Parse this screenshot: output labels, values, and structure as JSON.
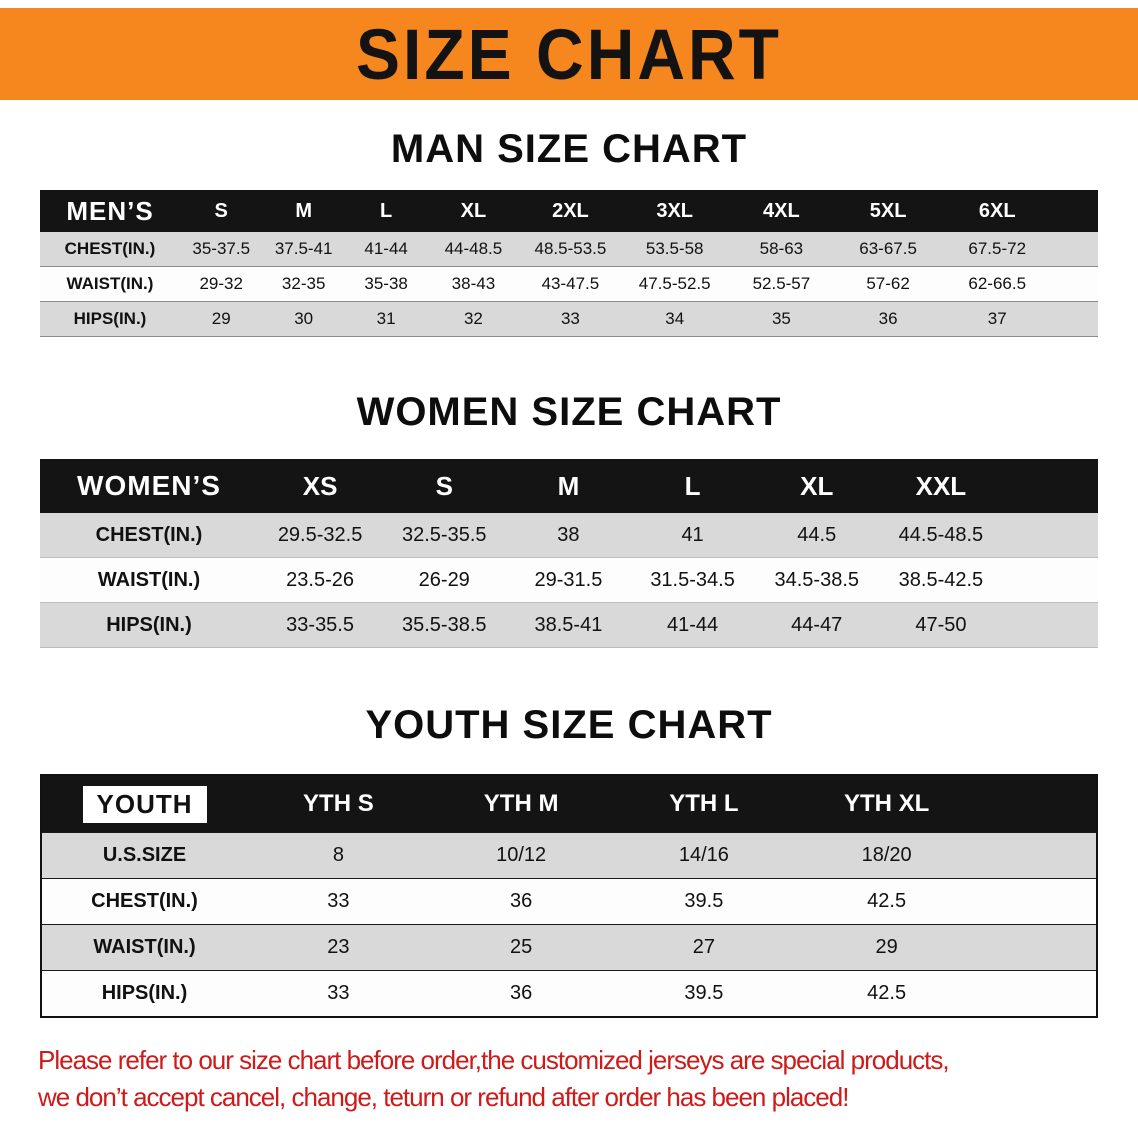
{
  "banner": {
    "title": "SIZE CHART"
  },
  "colors": {
    "banner_bg": "#f6871e",
    "table_header_bg": "#141414",
    "row_shade": "#d9d9d9",
    "disclaimer_red": "#cf1a1a"
  },
  "sections": [
    {
      "id": "men",
      "heading": "MAN SIZE CHART",
      "header": [
        "MEN’S",
        "S",
        "M",
        "L",
        "XL",
        "2XL",
        "3XL",
        "4XL",
        "5XL",
        "6XL"
      ],
      "rows": [
        [
          "CHEST(IN.)",
          "35-37.5",
          "37.5-41",
          "41-44",
          "44-48.5",
          "48.5-53.5",
          "53.5-58",
          "58-63",
          "63-67.5",
          "67.5-72"
        ],
        [
          "WAIST(IN.)",
          "29-32",
          "32-35",
          "35-38",
          "38-43",
          "43-47.5",
          "47.5-52.5",
          "52.5-57",
          "57-62",
          "62-66.5"
        ],
        [
          "HIPS(IN.)",
          "29",
          "30",
          "31",
          "32",
          "33",
          "34",
          "35",
          "36",
          "37"
        ]
      ]
    },
    {
      "id": "women",
      "heading": "WOMEN SIZE CHART",
      "header": [
        "WOMEN’S",
        "XS",
        "S",
        "M",
        "L",
        "XL",
        "XXL"
      ],
      "rows": [
        [
          "CHEST(IN.)",
          "29.5-32.5",
          "32.5-35.5",
          "38",
          "41",
          "44.5",
          "44.5-48.5"
        ],
        [
          "WAIST(IN.)",
          "23.5-26",
          "26-29",
          "29-31.5",
          "31.5-34.5",
          "34.5-38.5",
          "38.5-42.5"
        ],
        [
          "HIPS(IN.)",
          "33-35.5",
          "35.5-38.5",
          "38.5-41",
          "41-44",
          "44-47",
          "47-50"
        ]
      ]
    },
    {
      "id": "youth",
      "heading": "YOUTH SIZE CHART",
      "header": [
        "YOUTH",
        "YTH S",
        "YTH M",
        "YTH L",
        "YTH XL"
      ],
      "rows": [
        [
          "U.S.SIZE",
          "8",
          "10/12",
          "14/16",
          "18/20"
        ],
        [
          "CHEST(IN.)",
          "33",
          "36",
          "39.5",
          "42.5"
        ],
        [
          "WAIST(IN.)",
          "23",
          "25",
          "27",
          "29"
        ],
        [
          "HIPS(IN.)",
          "33",
          "36",
          "39.5",
          "42.5"
        ]
      ]
    }
  ],
  "disclaimer": {
    "line1": "Please refer to our size chart before order,the customized jerseys are special products,",
    "line2": "we don’t accept cancel, change, teturn or refund after order has been placed!"
  }
}
